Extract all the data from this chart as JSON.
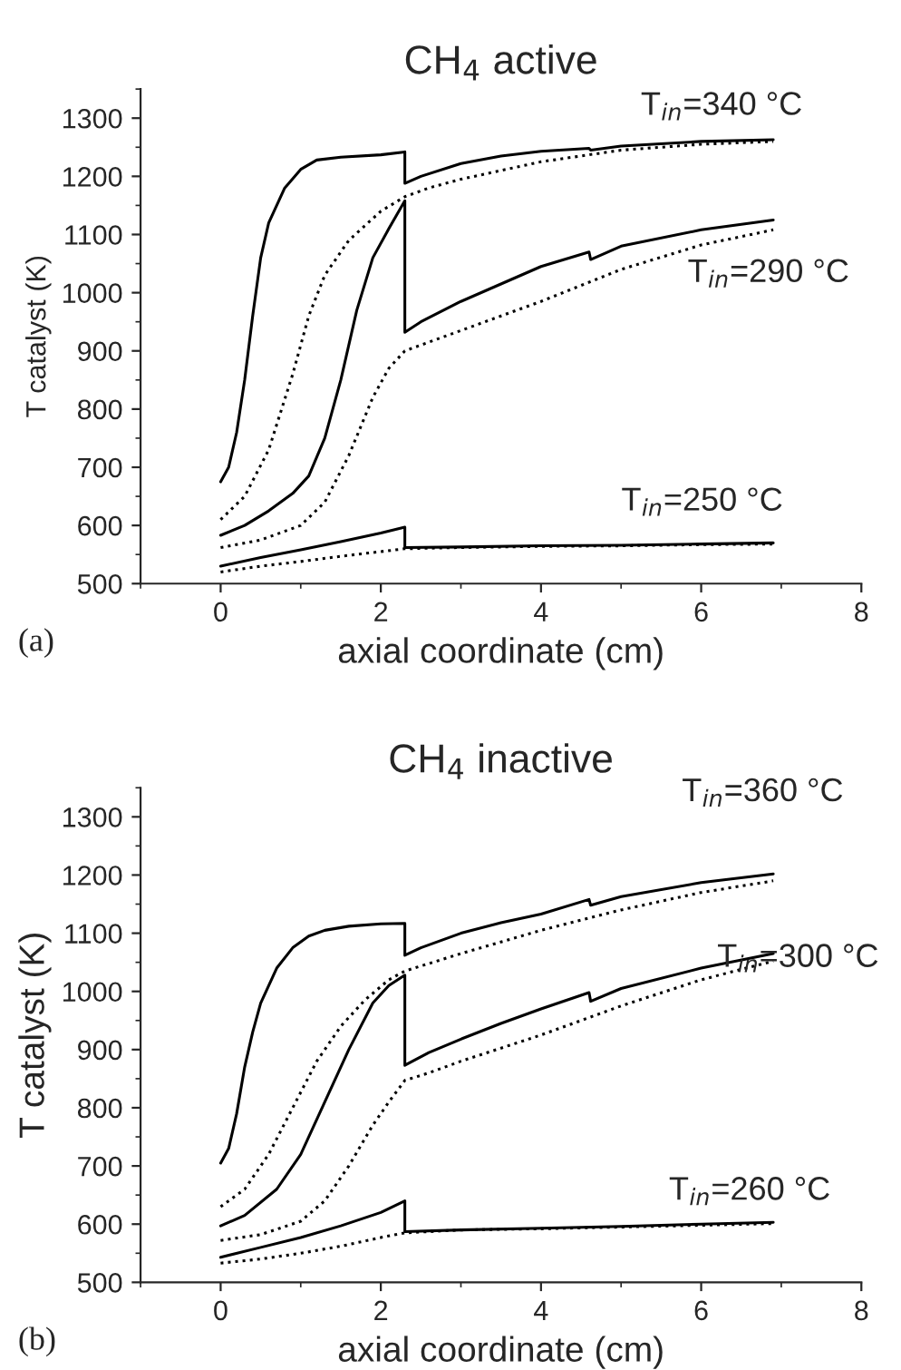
{
  "chart_data": [
    {
      "type": "line",
      "title": "CH$_{4}$ active",
      "xlabel": "axial coordinate (cm)",
      "ylabel": "T catalyst (K)",
      "xlim": [
        -1,
        8
      ],
      "xticks": [
        0,
        2,
        4,
        6,
        8
      ],
      "ylim": [
        500,
        1350
      ],
      "yticks": [
        500,
        600,
        700,
        800,
        900,
        1000,
        1100,
        1200,
        1300
      ],
      "grid": false,
      "series": [
        {
          "color": "#000000",
          "line_style": "solid",
          "x": [
            0,
            0.1,
            0.2,
            0.3,
            0.4,
            0.5,
            0.6,
            0.8,
            1.0,
            1.2,
            1.5,
            2.0,
            2.3,
            2.3,
            2.5,
            3,
            3.5,
            4,
            4.6,
            4.62,
            5,
            6,
            6.9
          ],
          "values": [
            675,
            700,
            760,
            850,
            960,
            1060,
            1120,
            1180,
            1212,
            1228,
            1233,
            1237,
            1242,
            1188,
            1200,
            1222,
            1235,
            1243,
            1248,
            1245,
            1252,
            1260,
            1263
          ]
        },
        {
          "color": "#000000",
          "line_style": "dotted",
          "x": [
            0,
            0.3,
            0.6,
            0.9,
            1.1,
            1.3,
            1.6,
            2.0,
            2.3,
            2.6,
            3,
            4,
            5,
            6,
            6.9
          ],
          "values": [
            610,
            650,
            730,
            860,
            960,
            1030,
            1090,
            1140,
            1165,
            1180,
            1195,
            1225,
            1245,
            1255,
            1260
          ]
        },
        {
          "color": "#000000",
          "line_style": "solid",
          "x": [
            0,
            0.3,
            0.6,
            0.9,
            1.1,
            1.3,
            1.5,
            1.7,
            1.9,
            2.1,
            2.3,
            2.3,
            2.5,
            3,
            3.5,
            4,
            4.6,
            4.62,
            5,
            6,
            6.9
          ],
          "values": [
            583,
            600,
            625,
            655,
            685,
            750,
            850,
            970,
            1060,
            1110,
            1158,
            932,
            950,
            985,
            1015,
            1045,
            1070,
            1057,
            1080,
            1108,
            1125
          ]
        },
        {
          "color": "#000000",
          "line_style": "dotted",
          "x": [
            0,
            0.5,
            1.0,
            1.3,
            1.6,
            1.9,
            2.1,
            2.3,
            2.6,
            3,
            4,
            5,
            6,
            6.9
          ],
          "values": [
            562,
            575,
            600,
            640,
            720,
            820,
            870,
            900,
            915,
            935,
            985,
            1040,
            1082,
            1108
          ]
        },
        {
          "color": "#000000",
          "line_style": "solid",
          "x": [
            0,
            0.5,
            1.0,
            1.5,
            2.0,
            2.3,
            2.3,
            3,
            4,
            5,
            6,
            6.9
          ],
          "values": [
            530,
            545,
            558,
            572,
            587,
            597,
            562,
            563,
            565,
            566,
            568,
            570
          ]
        },
        {
          "color": "#000000",
          "line_style": "dotted",
          "x": [
            0,
            0.5,
            1.0,
            1.5,
            2.0,
            2.3,
            3,
            4,
            5,
            6,
            6.9
          ],
          "values": [
            520,
            530,
            538,
            547,
            555,
            560,
            562,
            564,
            565,
            567,
            568
          ]
        }
      ],
      "annotations": [
        "T$_{in}$=340 °C",
        "T$_{in}$=290 °C",
        "T$_{in}$=250 °C",
        "(a)"
      ]
    },
    {
      "type": "line",
      "title": "CH$_{4}$ inactive",
      "xlabel": "axial coordinate (cm)",
      "ylabel": "T catalyst (K)",
      "xlim": [
        -1,
        8
      ],
      "xticks": [
        0,
        2,
        4,
        6,
        8
      ],
      "ylim": [
        500,
        1350
      ],
      "yticks": [
        500,
        600,
        700,
        800,
        900,
        1000,
        1100,
        1200,
        1300
      ],
      "grid": false,
      "series": [
        {
          "color": "#000000",
          "line_style": "solid",
          "x": [
            0,
            0.1,
            0.2,
            0.3,
            0.4,
            0.5,
            0.7,
            0.9,
            1.1,
            1.3,
            1.6,
            2.0,
            2.3,
            2.3,
            2.5,
            3,
            3.5,
            4,
            4.6,
            4.62,
            5,
            6,
            6.9
          ],
          "values": [
            705,
            730,
            790,
            870,
            930,
            980,
            1040,
            1075,
            1095,
            1105,
            1112,
            1116,
            1117,
            1062,
            1075,
            1100,
            1118,
            1133,
            1158,
            1148,
            1163,
            1187,
            1202
          ]
        },
        {
          "color": "#000000",
          "line_style": "dotted",
          "x": [
            0,
            0.3,
            0.6,
            0.9,
            1.2,
            1.5,
            1.8,
            2.1,
            2.3,
            3,
            4,
            5,
            6,
            6.9
          ],
          "values": [
            630,
            660,
            720,
            800,
            880,
            940,
            985,
            1020,
            1035,
            1065,
            1105,
            1140,
            1170,
            1190
          ]
        },
        {
          "color": "#000000",
          "line_style": "solid",
          "x": [
            0,
            0.3,
            0.7,
            1.0,
            1.3,
            1.6,
            1.9,
            2.1,
            2.3,
            2.3,
            2.6,
            3,
            3.5,
            4,
            4.6,
            4.62,
            5,
            6,
            6.9
          ],
          "values": [
            597,
            615,
            660,
            720,
            810,
            900,
            980,
            1010,
            1028,
            873,
            895,
            918,
            945,
            970,
            998,
            983,
            1005,
            1040,
            1065
          ]
        },
        {
          "color": "#000000",
          "line_style": "dotted",
          "x": [
            0,
            0.5,
            1.0,
            1.3,
            1.6,
            1.9,
            2.1,
            2.3,
            2.6,
            3,
            4,
            5,
            6,
            6.9
          ],
          "values": [
            572,
            582,
            605,
            640,
            700,
            770,
            810,
            847,
            860,
            880,
            925,
            975,
            1020,
            1052
          ]
        },
        {
          "color": "#000000",
          "line_style": "solid",
          "x": [
            0,
            0.5,
            1.0,
            1.5,
            2.0,
            2.3,
            2.3,
            3,
            4,
            5,
            6,
            6.9
          ],
          "values": [
            543,
            560,
            577,
            597,
            620,
            640,
            587,
            590,
            593,
            596,
            600,
            603
          ]
        },
        {
          "color": "#000000",
          "line_style": "dotted",
          "x": [
            0,
            0.5,
            1.0,
            1.5,
            2.0,
            2.3,
            3,
            4,
            5,
            6,
            6.9
          ],
          "values": [
            533,
            540,
            550,
            562,
            577,
            585,
            590,
            592,
            595,
            598,
            601
          ]
        }
      ],
      "annotations": [
        "T$_{in}$=360 °C",
        "T$_{in}$=300 °C",
        "T$_{in}$=260 °C",
        "(b)"
      ]
    }
  ]
}
